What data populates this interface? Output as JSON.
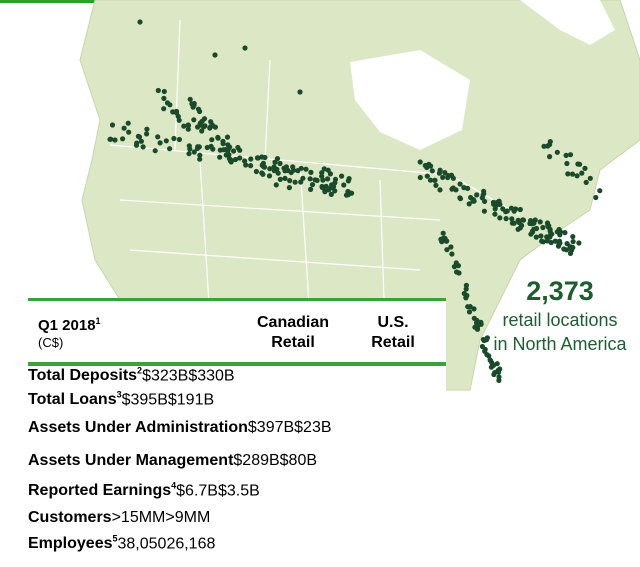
{
  "callout": {
    "number": "2,373",
    "line1": "retail locations",
    "line2": "in North America"
  },
  "table": {
    "title": "Q1 2018",
    "title_note": "1",
    "subtitle": "(C$)",
    "columns": [
      {
        "line1": "Canadian",
        "line2": "Retail"
      },
      {
        "line1": "U.S.",
        "line2": "Retail"
      }
    ],
    "rows": [
      {
        "label": "Total Deposits",
        "note": "2",
        "cells": [
          "$323B",
          "$330B"
        ]
      },
      {
        "label": "Total Loans",
        "note": "3",
        "cells": [
          "$395B",
          "$191B"
        ]
      },
      {
        "label": "Assets Under Administration",
        "cells": [
          "$397B",
          "$23B"
        ]
      },
      {
        "label": "Assets Under Management",
        "cells": [
          "$289B",
          "$80B"
        ]
      },
      {
        "label": "Reported Earnings",
        "note": "4",
        "cells": [
          "$6.7B",
          "$3.5B"
        ]
      },
      {
        "label": "Customers",
        "cells": [
          ">15MM",
          ">9MM"
        ]
      },
      {
        "label": "Employees",
        "note": "5",
        "cells": [
          "38,050",
          "26,168"
        ]
      }
    ]
  }
}
